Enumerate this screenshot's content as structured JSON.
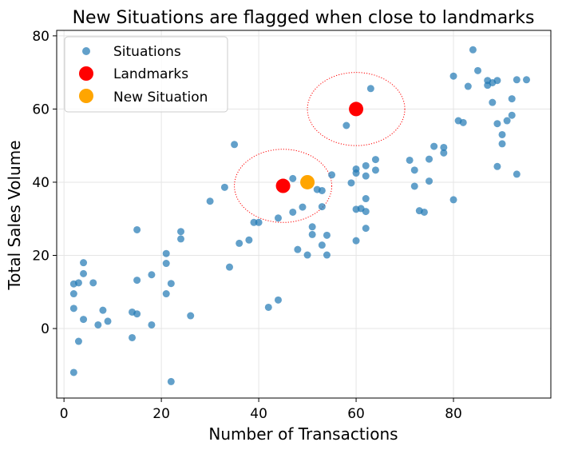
{
  "chart_data": {
    "type": "scatter",
    "title": "New Situations are flagged when close to landmarks",
    "xlabel": "Number of Transactions",
    "ylabel": "Total Sales Volume",
    "xlim": [
      -1.5,
      100
    ],
    "ylim": [
      -19,
      81.5
    ],
    "xticks": [
      0,
      20,
      40,
      60,
      80
    ],
    "yticks": [
      0,
      20,
      40,
      60,
      80
    ],
    "grid": true,
    "legend_position": "top-left",
    "series": [
      {
        "name": "Situations",
        "color": "#1f77b4",
        "points": [
          [
            2,
            -12
          ],
          [
            2,
            5.5
          ],
          [
            2,
            9.5
          ],
          [
            2,
            12.2
          ],
          [
            3,
            12.5
          ],
          [
            3,
            -3.5
          ],
          [
            4,
            18
          ],
          [
            4,
            15
          ],
          [
            4,
            2.5
          ],
          [
            6,
            12.5
          ],
          [
            7,
            1
          ],
          [
            8,
            5
          ],
          [
            9,
            2
          ],
          [
            14,
            4.5
          ],
          [
            14,
            -2.5
          ],
          [
            15,
            4
          ],
          [
            15,
            13.2
          ],
          [
            15,
            27
          ],
          [
            18,
            14.7
          ],
          [
            18,
            1
          ],
          [
            21,
            20.5
          ],
          [
            21,
            17.8
          ],
          [
            21,
            9.5
          ],
          [
            22,
            12.3
          ],
          [
            22,
            -14.5
          ],
          [
            24,
            26.5
          ],
          [
            24,
            24.5
          ],
          [
            26,
            3.5
          ],
          [
            30,
            34.8
          ],
          [
            33,
            38.6
          ],
          [
            34,
            16.8
          ],
          [
            35,
            50.3
          ],
          [
            36,
            23.3
          ],
          [
            38,
            24.2
          ],
          [
            39,
            29
          ],
          [
            40,
            29
          ],
          [
            42,
            5.8
          ],
          [
            44,
            30.2
          ],
          [
            44,
            7.8
          ],
          [
            47,
            41
          ],
          [
            47,
            31.8
          ],
          [
            48,
            21.6
          ],
          [
            49,
            33.2
          ],
          [
            50,
            20.1
          ],
          [
            51,
            27.8
          ],
          [
            51,
            25.7
          ],
          [
            52,
            38
          ],
          [
            53,
            37.7
          ],
          [
            53,
            33.3
          ],
          [
            53,
            22.8
          ],
          [
            54,
            25.5
          ],
          [
            54,
            20.1
          ],
          [
            55,
            42
          ],
          [
            58,
            55.5
          ],
          [
            59,
            39.8
          ],
          [
            60,
            43.6
          ],
          [
            60,
            42.5
          ],
          [
            60,
            32.6
          ],
          [
            60,
            24
          ],
          [
            61,
            32.8
          ],
          [
            62,
            44.5
          ],
          [
            62,
            41.7
          ],
          [
            62,
            35.5
          ],
          [
            62,
            32
          ],
          [
            62,
            27.4
          ],
          [
            63,
            65.6
          ],
          [
            64,
            46.2
          ],
          [
            64,
            43.3
          ],
          [
            71,
            46
          ],
          [
            72,
            43.3
          ],
          [
            72,
            38.9
          ],
          [
            73,
            32.2
          ],
          [
            74,
            31.8
          ],
          [
            75,
            46.3
          ],
          [
            75,
            40.3
          ],
          [
            76,
            49.8
          ],
          [
            78,
            49.5
          ],
          [
            78,
            48
          ],
          [
            80,
            69
          ],
          [
            80,
            35.2
          ],
          [
            81,
            56.8
          ],
          [
            82,
            56.3
          ],
          [
            83,
            66.2
          ],
          [
            84,
            76.2
          ],
          [
            85,
            70.5
          ],
          [
            87,
            67.8
          ],
          [
            87,
            66.5
          ],
          [
            88,
            67.2
          ],
          [
            88,
            61.8
          ],
          [
            89,
            67.8
          ],
          [
            89,
            56
          ],
          [
            89,
            44.3
          ],
          [
            90,
            53
          ],
          [
            90,
            50.5
          ],
          [
            91,
            56.8
          ],
          [
            92,
            62.8
          ],
          [
            92,
            58.3
          ],
          [
            93,
            68
          ],
          [
            93,
            42.2
          ],
          [
            95,
            68
          ]
        ]
      },
      {
        "name": "Landmarks",
        "color": "#ff0000",
        "points": [
          [
            45,
            39
          ],
          [
            60,
            60
          ]
        ]
      },
      {
        "name": "New Situation",
        "color": "#ffa500",
        "points": [
          [
            50,
            40
          ]
        ]
      }
    ],
    "threshold_circles": [
      {
        "center": [
          45,
          39
        ],
        "radius_x": 10,
        "radius_y": 10,
        "color": "#ff0000",
        "style": "dotted"
      },
      {
        "center": [
          60,
          60
        ],
        "radius_x": 10,
        "radius_y": 10,
        "color": "#ff0000",
        "style": "dotted"
      }
    ]
  }
}
